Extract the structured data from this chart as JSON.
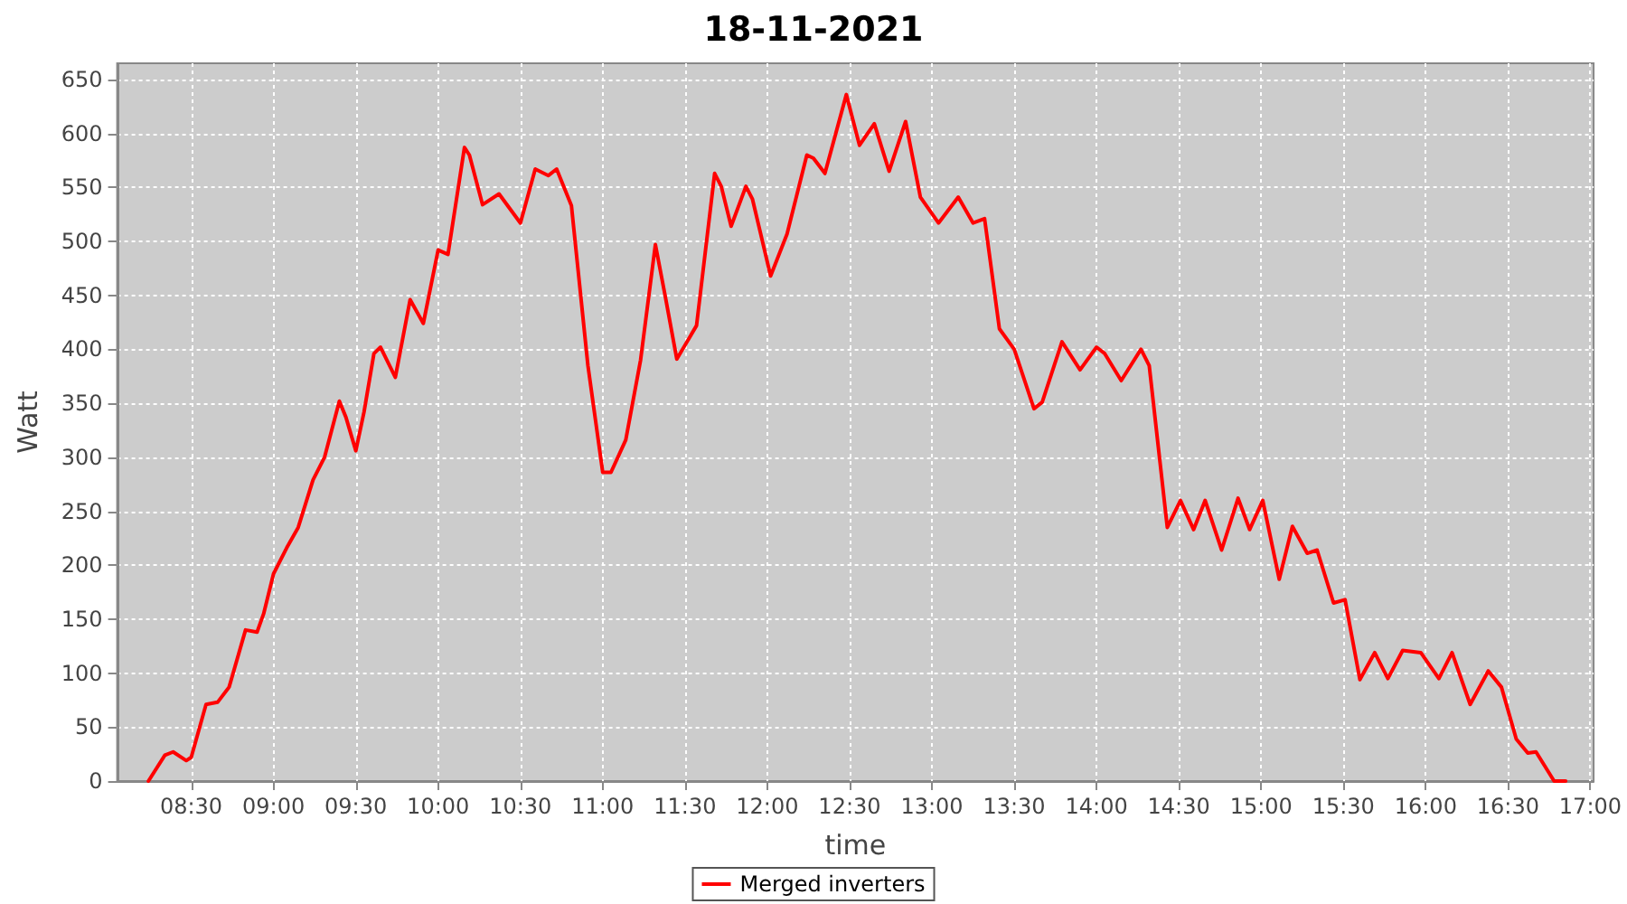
{
  "chart_data": {
    "type": "line",
    "title": "18-11-2021",
    "xlabel": "time",
    "ylabel": "Watt",
    "grid": true,
    "legend": "bottom",
    "marker": "none",
    "line_style": "solid",
    "xlim": [
      8.05,
      17.02
    ],
    "xticks": [
      {
        "value": 8.5,
        "label": "08:30"
      },
      {
        "value": 9,
        "label": "09:00"
      },
      {
        "value": 9.5,
        "label": "09:30"
      },
      {
        "value": 10,
        "label": "10:00"
      },
      {
        "value": 10.5,
        "label": "10:30"
      },
      {
        "value": 11,
        "label": "11:00"
      },
      {
        "value": 11.5,
        "label": "11:30"
      },
      {
        "value": 12,
        "label": "12:00"
      },
      {
        "value": 12.5,
        "label": "12:30"
      },
      {
        "value": 13,
        "label": "13:00"
      },
      {
        "value": 13.5,
        "label": "13:30"
      },
      {
        "value": 14,
        "label": "14:00"
      },
      {
        "value": 14.5,
        "label": "14:30"
      },
      {
        "value": 15,
        "label": "15:00"
      },
      {
        "value": 15.5,
        "label": "15:30"
      },
      {
        "value": 16,
        "label": "16:00"
      },
      {
        "value": 16.5,
        "label": "16:30"
      },
      {
        "value": 17,
        "label": "17:00"
      }
    ],
    "ylim": [
      0,
      665
    ],
    "yticks": [
      0,
      50,
      100,
      150,
      200,
      250,
      300,
      350,
      400,
      450,
      500,
      550,
      600,
      650
    ],
    "series": [
      {
        "name": "Merged inverters",
        "color": "#ff0000",
        "x": [
          8.24,
          8.34,
          8.39,
          8.47,
          8.5,
          8.59,
          8.66,
          8.73,
          8.83,
          8.9,
          8.94,
          9.0,
          9.08,
          9.15,
          9.24,
          9.31,
          9.4,
          9.44,
          9.5,
          9.55,
          9.61,
          9.65,
          9.74,
          9.83,
          9.91,
          10.0,
          10.06,
          10.16,
          10.19,
          10.27,
          10.37,
          10.5,
          10.59,
          10.67,
          10.72,
          10.81,
          10.91,
          11.0,
          11.05,
          11.14,
          11.23,
          11.32,
          11.38,
          11.45,
          11.57,
          11.68,
          11.72,
          11.78,
          11.87,
          11.91,
          12.02,
          12.12,
          12.24,
          12.28,
          12.35,
          12.48,
          12.56,
          12.65,
          12.74,
          12.84,
          12.93,
          13.04,
          13.11,
          13.16,
          13.25,
          13.32,
          13.41,
          13.5,
          13.62,
          13.67,
          13.79,
          13.9,
          14.0,
          14.05,
          14.15,
          14.27,
          14.32,
          14.43,
          14.51,
          14.59,
          14.66,
          14.76,
          14.86,
          14.93,
          15.01,
          15.11,
          15.19,
          15.28,
          15.34,
          15.44,
          15.51,
          15.6,
          15.69,
          15.77,
          15.86,
          15.97,
          16.08,
          16.16,
          16.27,
          16.38,
          16.46,
          16.55,
          16.62,
          16.67,
          16.78,
          16.85
        ],
        "values": [
          0,
          24,
          27,
          19,
          22,
          71,
          73,
          87,
          140,
          138,
          155,
          192,
          216,
          235,
          279,
          300,
          352,
          337,
          306,
          342,
          396,
          402,
          374,
          446,
          424,
          492,
          488,
          587,
          580,
          534,
          544,
          517,
          567,
          561,
          567,
          533,
          385,
          286,
          286,
          316,
          390,
          497,
          449,
          391,
          422,
          563,
          551,
          514,
          551,
          539,
          468,
          507,
          580,
          577,
          563,
          636,
          589,
          609,
          565,
          611,
          541,
          517,
          531,
          541,
          517,
          521,
          419,
          400,
          345,
          351,
          407,
          381,
          402,
          396,
          371,
          400,
          385,
          235,
          260,
          233,
          260,
          214,
          262,
          233,
          260,
          187,
          236,
          211,
          214,
          165,
          168,
          94,
          119,
          95,
          121,
          119,
          95,
          119,
          71,
          102,
          87,
          39,
          26,
          27,
          0,
          0
        ]
      }
    ]
  }
}
